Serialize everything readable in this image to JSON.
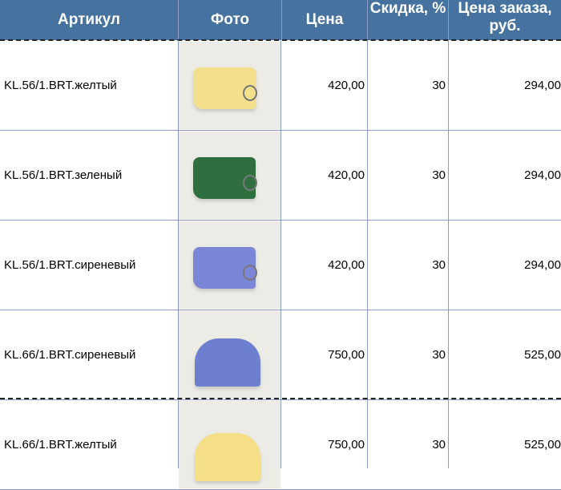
{
  "header": {
    "sku": "Артикул",
    "photo": "Фото",
    "price": "Цена",
    "discount": "Скидка, %",
    "order_price": "Цена заказа, руб."
  },
  "rows": [
    {
      "sku": "KL.56/1.BRT.желтый",
      "price": "420,00",
      "discount": "30",
      "order_price": "294,00",
      "color": "#f3e08c",
      "shape": "flat"
    },
    {
      "sku": "KL.56/1.BRT.зеленый",
      "price": "420,00",
      "discount": "30",
      "order_price": "294,00",
      "color": "#2f6e3e",
      "shape": "flat"
    },
    {
      "sku": "KL.56/1.BRT.сиреневый",
      "price": "420,00",
      "discount": "30",
      "order_price": "294,00",
      "color": "#7c86d6",
      "shape": "flat"
    },
    {
      "sku": "KL.66/1.BRT.сиреневый",
      "price": "750,00",
      "discount": "30",
      "order_price": "525,00",
      "color": "#6f7fd0",
      "shape": "dome"
    },
    {
      "sku": "KL.66/1.BRT.желтый",
      "price": "750,00",
      "discount": "30",
      "order_price": "525,00",
      "color": "#f5df86",
      "shape": "dome"
    }
  ]
}
